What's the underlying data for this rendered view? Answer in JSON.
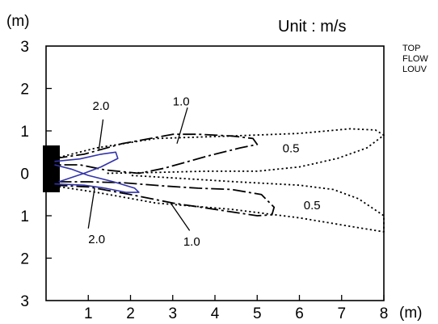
{
  "chart_data": {
    "type": "contour",
    "x_unit_label": "(m)",
    "y_unit_label": "(m)",
    "unit_text": "Unit  : m/s",
    "side_text": [
      "TOP",
      "FLOW",
      "LOUV"
    ],
    "x_ticks": [
      "1",
      "2",
      "3",
      "4",
      "5",
      "6",
      "7",
      "8"
    ],
    "y_ticks": [
      "3",
      "2",
      "1",
      "0",
      "1",
      "2",
      "3"
    ],
    "xlim": [
      0,
      8
    ],
    "ylim": [
      -3,
      3
    ],
    "annotations": [
      {
        "text": "2.0",
        "x": 1.3,
        "y": 1.5
      },
      {
        "text": "1.0",
        "x": 3.2,
        "y": 1.6
      },
      {
        "text": "0.5",
        "x": 5.8,
        "y": 0.5
      },
      {
        "text": "0.5",
        "x": 6.3,
        "y": -0.85
      },
      {
        "text": "2.0",
        "x": 1.2,
        "y": -1.65
      },
      {
        "text": "1.0",
        "x": 3.45,
        "y": -1.7
      }
    ],
    "contours": [
      {
        "name": "0.5 upper",
        "style": "dotted",
        "color": "#000000",
        "points": [
          [
            0.2,
            0.35
          ],
          [
            1.2,
            0.6
          ],
          [
            2.6,
            0.82
          ],
          [
            4.4,
            0.88
          ],
          [
            6.0,
            0.94
          ],
          [
            7.2,
            1.05
          ],
          [
            7.8,
            1.02
          ],
          [
            8.0,
            0.9
          ],
          [
            7.6,
            0.6
          ],
          [
            6.9,
            0.35
          ],
          [
            6.0,
            0.15
          ],
          [
            5.0,
            0.05
          ],
          [
            3.8,
            0.05
          ],
          [
            2.6,
            0.02
          ],
          [
            1.4,
            0.0
          ]
        ]
      },
      {
        "name": "0.5 lower",
        "style": "dotted",
        "color": "#000000",
        "points": [
          [
            0.2,
            -0.3
          ],
          [
            1.2,
            -0.45
          ],
          [
            2.6,
            -0.7
          ],
          [
            4.4,
            -0.85
          ],
          [
            6.0,
            -1.05
          ],
          [
            7.2,
            -1.25
          ],
          [
            8.0,
            -1.38
          ],
          [
            8.0,
            -1.0
          ],
          [
            7.4,
            -0.6
          ],
          [
            6.8,
            -0.38
          ],
          [
            6.0,
            -0.28
          ],
          [
            4.5,
            -0.2
          ],
          [
            3.2,
            -0.12
          ],
          [
            2.0,
            -0.05
          ]
        ]
      },
      {
        "name": "1.0 upper",
        "style": "dashdot",
        "color": "#000000",
        "points": [
          [
            0.2,
            0.35
          ],
          [
            0.9,
            0.45
          ],
          [
            1.8,
            0.7
          ],
          [
            3.0,
            0.92
          ],
          [
            3.6,
            0.92
          ],
          [
            4.4,
            0.88
          ],
          [
            4.9,
            0.82
          ],
          [
            5.0,
            0.68
          ],
          [
            4.6,
            0.6
          ],
          [
            3.8,
            0.4
          ],
          [
            2.8,
            0.12
          ],
          [
            2.2,
            0.0
          ],
          [
            1.4,
            0.08
          ],
          [
            0.8,
            0.2
          ],
          [
            0.2,
            0.2
          ]
        ]
      },
      {
        "name": "1.0 lower",
        "style": "dashdot",
        "color": "#000000",
        "points": [
          [
            0.2,
            -0.28
          ],
          [
            1.0,
            -0.32
          ],
          [
            2.0,
            -0.5
          ],
          [
            3.0,
            -0.7
          ],
          [
            4.0,
            -0.85
          ],
          [
            5.0,
            -1.0
          ],
          [
            5.35,
            -0.98
          ],
          [
            5.4,
            -0.8
          ],
          [
            5.1,
            -0.5
          ],
          [
            4.4,
            -0.38
          ],
          [
            3.6,
            -0.35
          ],
          [
            2.8,
            -0.3
          ],
          [
            1.8,
            -0.22
          ],
          [
            1.0,
            -0.2
          ],
          [
            0.2,
            -0.2
          ]
        ]
      },
      {
        "name": "2.0 upper",
        "style": "solid",
        "color": "#3333aa",
        "points": [
          [
            0.2,
            0.28
          ],
          [
            0.8,
            0.34
          ],
          [
            1.3,
            0.45
          ],
          [
            1.65,
            0.5
          ],
          [
            1.7,
            0.35
          ],
          [
            1.3,
            0.15
          ],
          [
            0.9,
            0.0
          ],
          [
            0.6,
            -0.1
          ],
          [
            0.3,
            -0.2
          ]
        ]
      },
      {
        "name": "2.0 lower",
        "style": "solid",
        "color": "#3333aa",
        "points": [
          [
            0.2,
            0.2
          ],
          [
            0.6,
            0.1
          ],
          [
            1.0,
            -0.05
          ],
          [
            1.6,
            -0.2
          ],
          [
            2.1,
            -0.35
          ],
          [
            2.2,
            -0.45
          ],
          [
            1.9,
            -0.45
          ],
          [
            1.4,
            -0.35
          ],
          [
            0.9,
            -0.28
          ],
          [
            0.2,
            -0.25
          ]
        ]
      }
    ],
    "leaders": [
      {
        "from": [
          1.35,
          1.27
        ],
        "to": [
          1.25,
          0.55
        ]
      },
      {
        "from": [
          3.35,
          1.55
        ],
        "to": [
          3.1,
          0.7
        ]
      },
      {
        "from": [
          1.0,
          -1.3
        ],
        "to": [
          1.15,
          -0.35
        ]
      },
      {
        "from": [
          3.4,
          -1.35
        ],
        "to": [
          2.95,
          -0.7
        ]
      }
    ]
  }
}
